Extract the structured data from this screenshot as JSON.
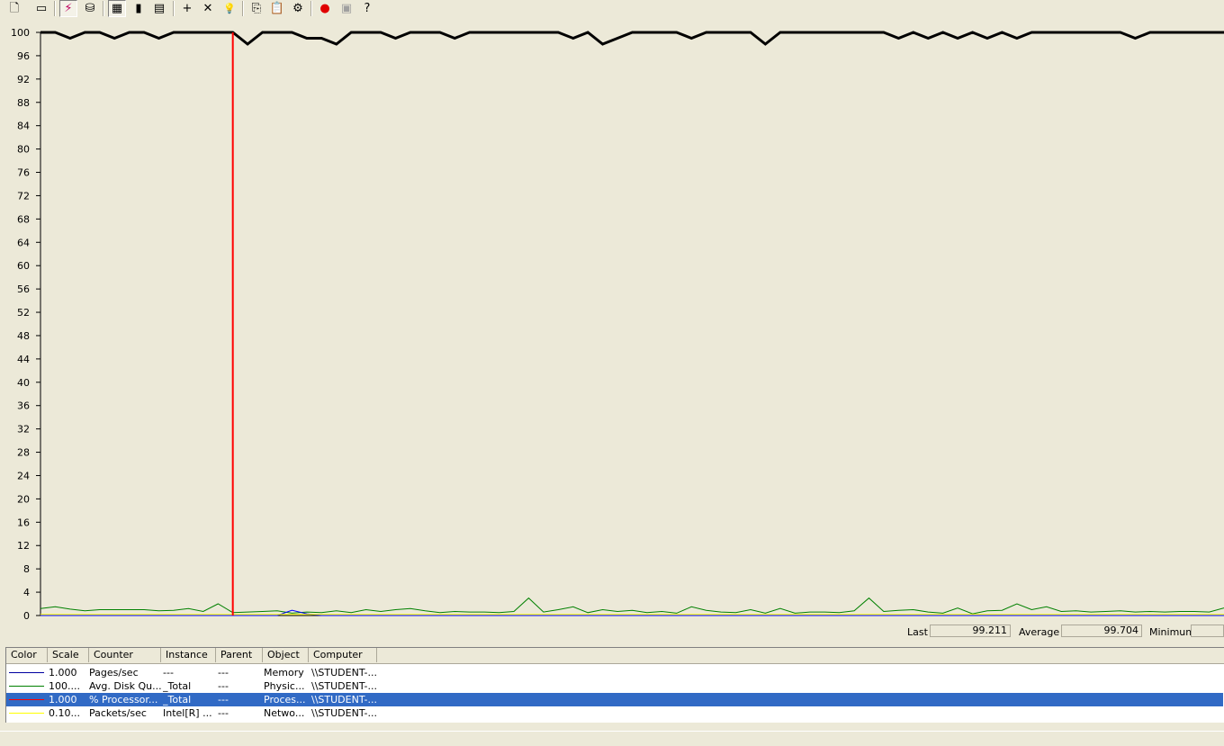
{
  "toolbar": {
    "buttons": [
      {
        "name": "new-counter-set",
        "glyph": "🗋"
      },
      {
        "name": "clear-display",
        "glyph": "▭"
      },
      {
        "name": "view-current-activity",
        "glyph": "⚡",
        "pressed": true
      },
      {
        "name": "view-log-data",
        "glyph": "⛁"
      },
      {
        "name": "view-graph",
        "glyph": "▦",
        "pressed": true
      },
      {
        "name": "view-histogram",
        "glyph": "▮"
      },
      {
        "name": "view-report",
        "glyph": "▤"
      },
      {
        "name": "add-counter",
        "glyph": "+"
      },
      {
        "name": "delete-counter",
        "glyph": "✕"
      },
      {
        "name": "highlight",
        "glyph": "💡"
      },
      {
        "name": "copy-properties",
        "glyph": "⎘"
      },
      {
        "name": "paste-counter-list",
        "glyph": "📋"
      },
      {
        "name": "properties",
        "glyph": "⚙"
      },
      {
        "name": "freeze-display",
        "glyph": "●"
      },
      {
        "name": "update-data",
        "glyph": "▣"
      },
      {
        "name": "help",
        "glyph": "?"
      }
    ]
  },
  "chart_data": {
    "type": "line",
    "ylim": [
      0,
      100
    ],
    "yticks": [
      "100",
      "96",
      "92",
      "88",
      "84",
      "80",
      "76",
      "72",
      "68",
      "64",
      "60",
      "56",
      "52",
      "48",
      "44",
      "40",
      "36",
      "32",
      "28",
      "24",
      "20",
      "16",
      "12",
      "8",
      "4",
      "0"
    ],
    "current_sample_index": 13,
    "series": [
      {
        "color": "#000000",
        "values": [
          100,
          100,
          99,
          100,
          100,
          99,
          100,
          100,
          99,
          100,
          100,
          100,
          100,
          100,
          98,
          100,
          100,
          100,
          99,
          99,
          98,
          100,
          100,
          100,
          99,
          100,
          100,
          100,
          99,
          100,
          100,
          100,
          100,
          100,
          100,
          100,
          99,
          100,
          98,
          99,
          100,
          100,
          100,
          100,
          99,
          100,
          100,
          100,
          100,
          98,
          100,
          100,
          100,
          100,
          100,
          100,
          100,
          100,
          99,
          100,
          99,
          100,
          99,
          100,
          99,
          100,
          99,
          100,
          100,
          100,
          100,
          100,
          100,
          100,
          99,
          100,
          100,
          100,
          100,
          100,
          100
        ]
      },
      {
        "color": "#008000",
        "values": [
          1.2,
          1.5,
          1.1,
          0.8,
          1.0,
          1.0,
          1.0,
          1.0,
          0.8,
          0.9,
          1.2,
          0.7,
          2.0,
          0.5,
          0.6,
          0.7,
          0.8,
          0.4,
          0.6,
          0.5,
          0.8,
          0.5,
          1.0,
          0.7,
          1.0,
          1.2,
          0.8,
          0.5,
          0.7,
          0.6,
          0.6,
          0.5,
          0.7,
          3.0,
          0.6,
          1.0,
          1.5,
          0.5,
          1.0,
          0.7,
          0.9,
          0.5,
          0.7,
          0.4,
          1.5,
          0.9,
          0.6,
          0.5,
          1.0,
          0.4,
          1.2,
          0.4,
          0.6,
          0.6,
          0.5,
          0.8,
          3.0,
          0.7,
          0.9,
          1.0,
          0.6,
          0.4,
          1.3,
          0.3,
          0.8,
          0.9,
          2.0,
          1.0,
          1.5,
          0.7,
          0.8,
          0.6,
          0.7,
          0.8,
          0.6,
          0.7,
          0.6,
          0.7,
          0.7,
          0.6,
          1.3
        ]
      },
      {
        "color": "#0000ff",
        "values": [
          0,
          0,
          0,
          0,
          0,
          0,
          0,
          0,
          0,
          0,
          0,
          0,
          0,
          0,
          0,
          0,
          0,
          0.9,
          0.3,
          0,
          0,
          0,
          0,
          0,
          0,
          0,
          0,
          0,
          0,
          0,
          0,
          0,
          0,
          0,
          0,
          0,
          0,
          0,
          0,
          0,
          0,
          0,
          0,
          0,
          0,
          0,
          0,
          0,
          0,
          0,
          0,
          0,
          0,
          0,
          0,
          0,
          0,
          0,
          0,
          0,
          0,
          0,
          0,
          0,
          0,
          0,
          0,
          0,
          0,
          0,
          0,
          0,
          0,
          0,
          0,
          0,
          0,
          0,
          0,
          0,
          0
        ]
      },
      {
        "color": "#ffff00",
        "values": [
          0.2,
          0.2,
          0.2,
          0.2,
          0.2,
          0.2,
          0.2,
          0.2,
          0.2,
          0.2,
          0.2,
          0.2,
          0.2,
          0.2,
          0.2,
          0.2,
          0.2,
          0.2,
          0.2,
          0.2,
          0.2,
          0.2,
          0.2,
          0.2,
          0.2,
          0.2,
          0.2,
          0.2,
          0.2,
          0.2,
          0.2,
          0.2,
          0.2,
          0.2,
          0.2,
          0.2,
          0.2,
          0.2,
          0.2,
          0.2,
          0.2,
          0.2,
          0.2,
          0.2,
          0.2,
          0.2,
          0.2,
          0.2,
          0.2,
          0.2,
          0.2,
          0.2,
          0.2,
          0.2,
          0.2,
          0.2,
          0.2,
          0.2,
          0.2,
          0.2,
          0.2,
          0.2,
          0.2,
          0.2,
          0.2,
          0.2,
          0.2,
          0.2,
          0.2,
          0.2,
          0.2,
          0.2,
          0.2,
          0.2,
          0.2,
          0.2,
          0.2,
          0.2,
          0.2,
          0.2,
          0.2
        ]
      }
    ]
  },
  "stats": {
    "last_label": "Last",
    "last_value": "99.211",
    "average_label": "Average",
    "average_value": "99.704",
    "minimum_label": "Minimum",
    "minimum_value": ""
  },
  "counters": {
    "columns": [
      "Color",
      "Scale",
      "Counter",
      "Instance",
      "Parent",
      "Object",
      "Computer"
    ],
    "rows": [
      {
        "color": "#0000a0",
        "scale": "1.000",
        "counter": "Pages/sec",
        "instance": "---",
        "parent": "---",
        "object": "Memory",
        "computer": "\\\\STUDENT-...",
        "selected": false
      },
      {
        "color": "#008000",
        "scale": "100....",
        "counter": "Avg. Disk Qu...",
        "instance": "_Total",
        "parent": "---",
        "object": "Physic...",
        "computer": "\\\\STUDENT-...",
        "selected": false
      },
      {
        "color": "#ff0000",
        "scale": "1.000",
        "counter": "% Processor...",
        "instance": "_Total",
        "parent": "---",
        "object": "Proces...",
        "computer": "\\\\STUDENT-...",
        "selected": true
      },
      {
        "color": "#ffff00",
        "scale": "0.10...",
        "counter": "Packets/sec",
        "instance": "Intel[R] ...",
        "parent": "---",
        "object": "Netwo...",
        "computer": "\\\\STUDENT-...",
        "selected": false
      }
    ]
  }
}
